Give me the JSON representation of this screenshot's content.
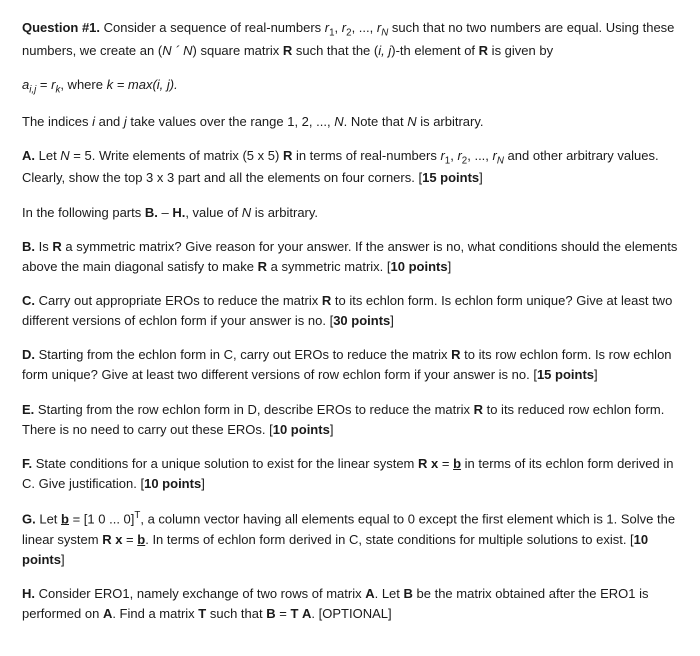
{
  "q": {
    "title_label": "Question #1.",
    "intro_a": " Consider a sequence of real-numbers ",
    "intro_b": " such that no two numbers are equal. Using these numbers, we create an (",
    "intro_c": ") square matrix ",
    "intro_d": " such that the (",
    "intro_e": ")-th element of ",
    "intro_f": " is given by",
    "r1": "r",
    "r1s": "1",
    "r2": "r",
    "r2s": "2",
    "rN": "r",
    "rNs": "N",
    "dots": ", ..., ",
    "comma": ", ",
    "N": "N",
    "times": " ´ ",
    "R": "R",
    "ij": "i, j",
    "def_a": "a",
    "def_sub": "i,j",
    "def_eq": " = ",
    "def_r": "r",
    "def_k": "k",
    "def_where": ", where ",
    "def_kexp": "k = max(",
    "def_ij2": "i, j",
    "def_close": ").",
    "range_a": "The indices ",
    "range_i": "i",
    "range_and": " and ",
    "range_j": "j",
    "range_b": " take values over the range 1, 2, ..., ",
    "range_c": ". Note that ",
    "range_d": " is arbitrary."
  },
  "A": {
    "label": "A.",
    "a": " Let ",
    "n5": "N",
    "eq5": " = 5. Write elements of matrix (5 x 5) ",
    "R": "R",
    "b": " in terms of real-numbers ",
    "c": " and other arbitrary values. Clearly, show the top 3 x 3 part and all the elements on four corners. [",
    "pts": "15 points",
    "end": "]"
  },
  "note": {
    "a": "In the following parts ",
    "b": "B.",
    "dash": " – ",
    "c": "H.",
    "d": ", value of ",
    "N": "N",
    "e": " is arbitrary."
  },
  "B": {
    "label": "B.",
    "a": " Is ",
    "R": "R",
    "b": " a symmetric matrix? Give reason for your answer. If the answer is no, what conditions should the elements above the main diagonal satisfy to make ",
    "c": " a symmetric matrix. [",
    "pts": "10 points",
    "end": "]"
  },
  "C": {
    "label": "C.",
    "a": " Carry out appropriate EROs to reduce the matrix ",
    "R": "R",
    "b": " to its echlon form. Is echlon form unique? Give at least two different versions of echlon form if your answer is no. [",
    "pts": "30 points",
    "end": "]"
  },
  "D": {
    "label": "D.",
    "a": " Starting from the echlon form in C, carry out EROs to reduce the matrix ",
    "R": "R",
    "b": " to its row echlon form. Is row echlon form unique? Give at least two different versions of row echlon form if your answer is no. [",
    "pts": "15 points",
    "end": "]"
  },
  "E": {
    "label": "E.",
    "a": " Starting from the row echlon form in D, describe EROs to reduce the matrix ",
    "R": "R",
    "b": " to its reduced row echlon form. There is no need to carry out these EROs. [",
    "pts": "10 points",
    "end": "]"
  },
  "F": {
    "label": "F.",
    "a": " State conditions for a unique solution to exist for the linear system ",
    "R": "R",
    "x": " x",
    "eq": " = ",
    "b": "b",
    "c": " in terms of its echlon form derived in C. Give justification.    [",
    "pts": "10 points",
    "end": "]"
  },
  "G": {
    "label": "G.",
    "a": " Let ",
    "b": "b",
    "eq": " = [1 0 ... 0]",
    "T": "T",
    "c": ", a column vector having all elements equal to 0 except the first element which is 1. Solve the linear system ",
    "R": "R",
    "x": " x",
    "eq2": " = ",
    "d": ". In terms of echlon form derived in C, state conditions for multiple solutions to exist. [",
    "pts": "10 points",
    "end": "]"
  },
  "H": {
    "label": "H.",
    "a": " Consider ERO1, namely exchange of two rows of matrix ",
    "A": "A",
    "b": ". Let ",
    "B": "B",
    "c": " be the matrix obtained after the ERO1 is performed on ",
    "d": ".  Find a matrix ",
    "Tm": "T",
    "e": " such that ",
    "eqn": " = ",
    "f": ". [OPTIONAL]"
  }
}
